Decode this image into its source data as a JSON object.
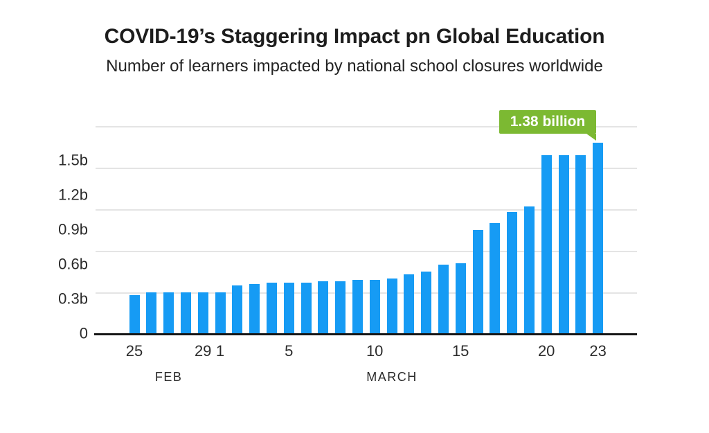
{
  "header": {
    "title": "COVID-19’s Staggering Impact pn Global Education",
    "subtitle": "Number of learners impacted by national school closures worldwide"
  },
  "callout": {
    "text": "1.38 billion",
    "bg_color": "#7CB932",
    "text_color": "#FFFFFF"
  },
  "chart_data": {
    "type": "bar",
    "title": "COVID-19’s Staggering Impact pn Global Education",
    "subtitle": "Number of learners impacted by national school closures worldwide",
    "unit": "billions of learners",
    "bar_color": "#169BF4",
    "grid": true,
    "grid_color": "#E4E4E4",
    "axis_color": "#161616",
    "label_color": "#2B2B2B",
    "legend": "none",
    "ylim": [
      0,
      1.5
    ],
    "y_ticks": [
      {
        "label": "0",
        "value": 0
      },
      {
        "label": "0.3b",
        "value": 0.3
      },
      {
        "label": "0.6b",
        "value": 0.6
      },
      {
        "label": "0.9b",
        "value": 0.9
      },
      {
        "label": "1.2b",
        "value": 1.2
      },
      {
        "label": "1.5b",
        "value": 1.5
      }
    ],
    "categories": [
      "Feb 25",
      "Feb 26",
      "Feb 27",
      "Feb 28",
      "Feb 29",
      "Mar 1",
      "Mar 2",
      "Mar 3",
      "Mar 4",
      "Mar 5",
      "Mar 6",
      "Mar 7",
      "Mar 8",
      "Mar 9",
      "Mar 10",
      "Mar 11",
      "Mar 12",
      "Mar 13",
      "Mar 14",
      "Mar 15",
      "Mar 16",
      "Mar 17",
      "Mar 18",
      "Mar 19",
      "Mar 20",
      "Mar 21",
      "Mar 22",
      "Mar 23"
    ],
    "values": [
      0.28,
      0.3,
      0.3,
      0.3,
      0.3,
      0.3,
      0.35,
      0.36,
      0.37,
      0.37,
      0.37,
      0.38,
      0.38,
      0.39,
      0.39,
      0.4,
      0.43,
      0.45,
      0.5,
      0.51,
      0.75,
      0.8,
      0.88,
      0.92,
      1.29,
      1.29,
      1.29,
      1.38
    ],
    "x_ticks": [
      {
        "label": "25",
        "bar_index": 0
      },
      {
        "label": "29",
        "bar_index": 4
      },
      {
        "label": "1",
        "bar_index": 5
      },
      {
        "label": "5",
        "bar_index": 9
      },
      {
        "label": "10",
        "bar_index": 14
      },
      {
        "label": "15",
        "bar_index": 19
      },
      {
        "label": "20",
        "bar_index": 24
      },
      {
        "label": "23",
        "bar_index": 27
      }
    ],
    "month_labels": [
      {
        "label": "FEB",
        "bar_index": 2
      },
      {
        "label": "MARCH",
        "bar_index": 15
      }
    ],
    "annotation": {
      "text": "1.38 billion",
      "category": "Mar 23",
      "value": 1.38
    }
  }
}
